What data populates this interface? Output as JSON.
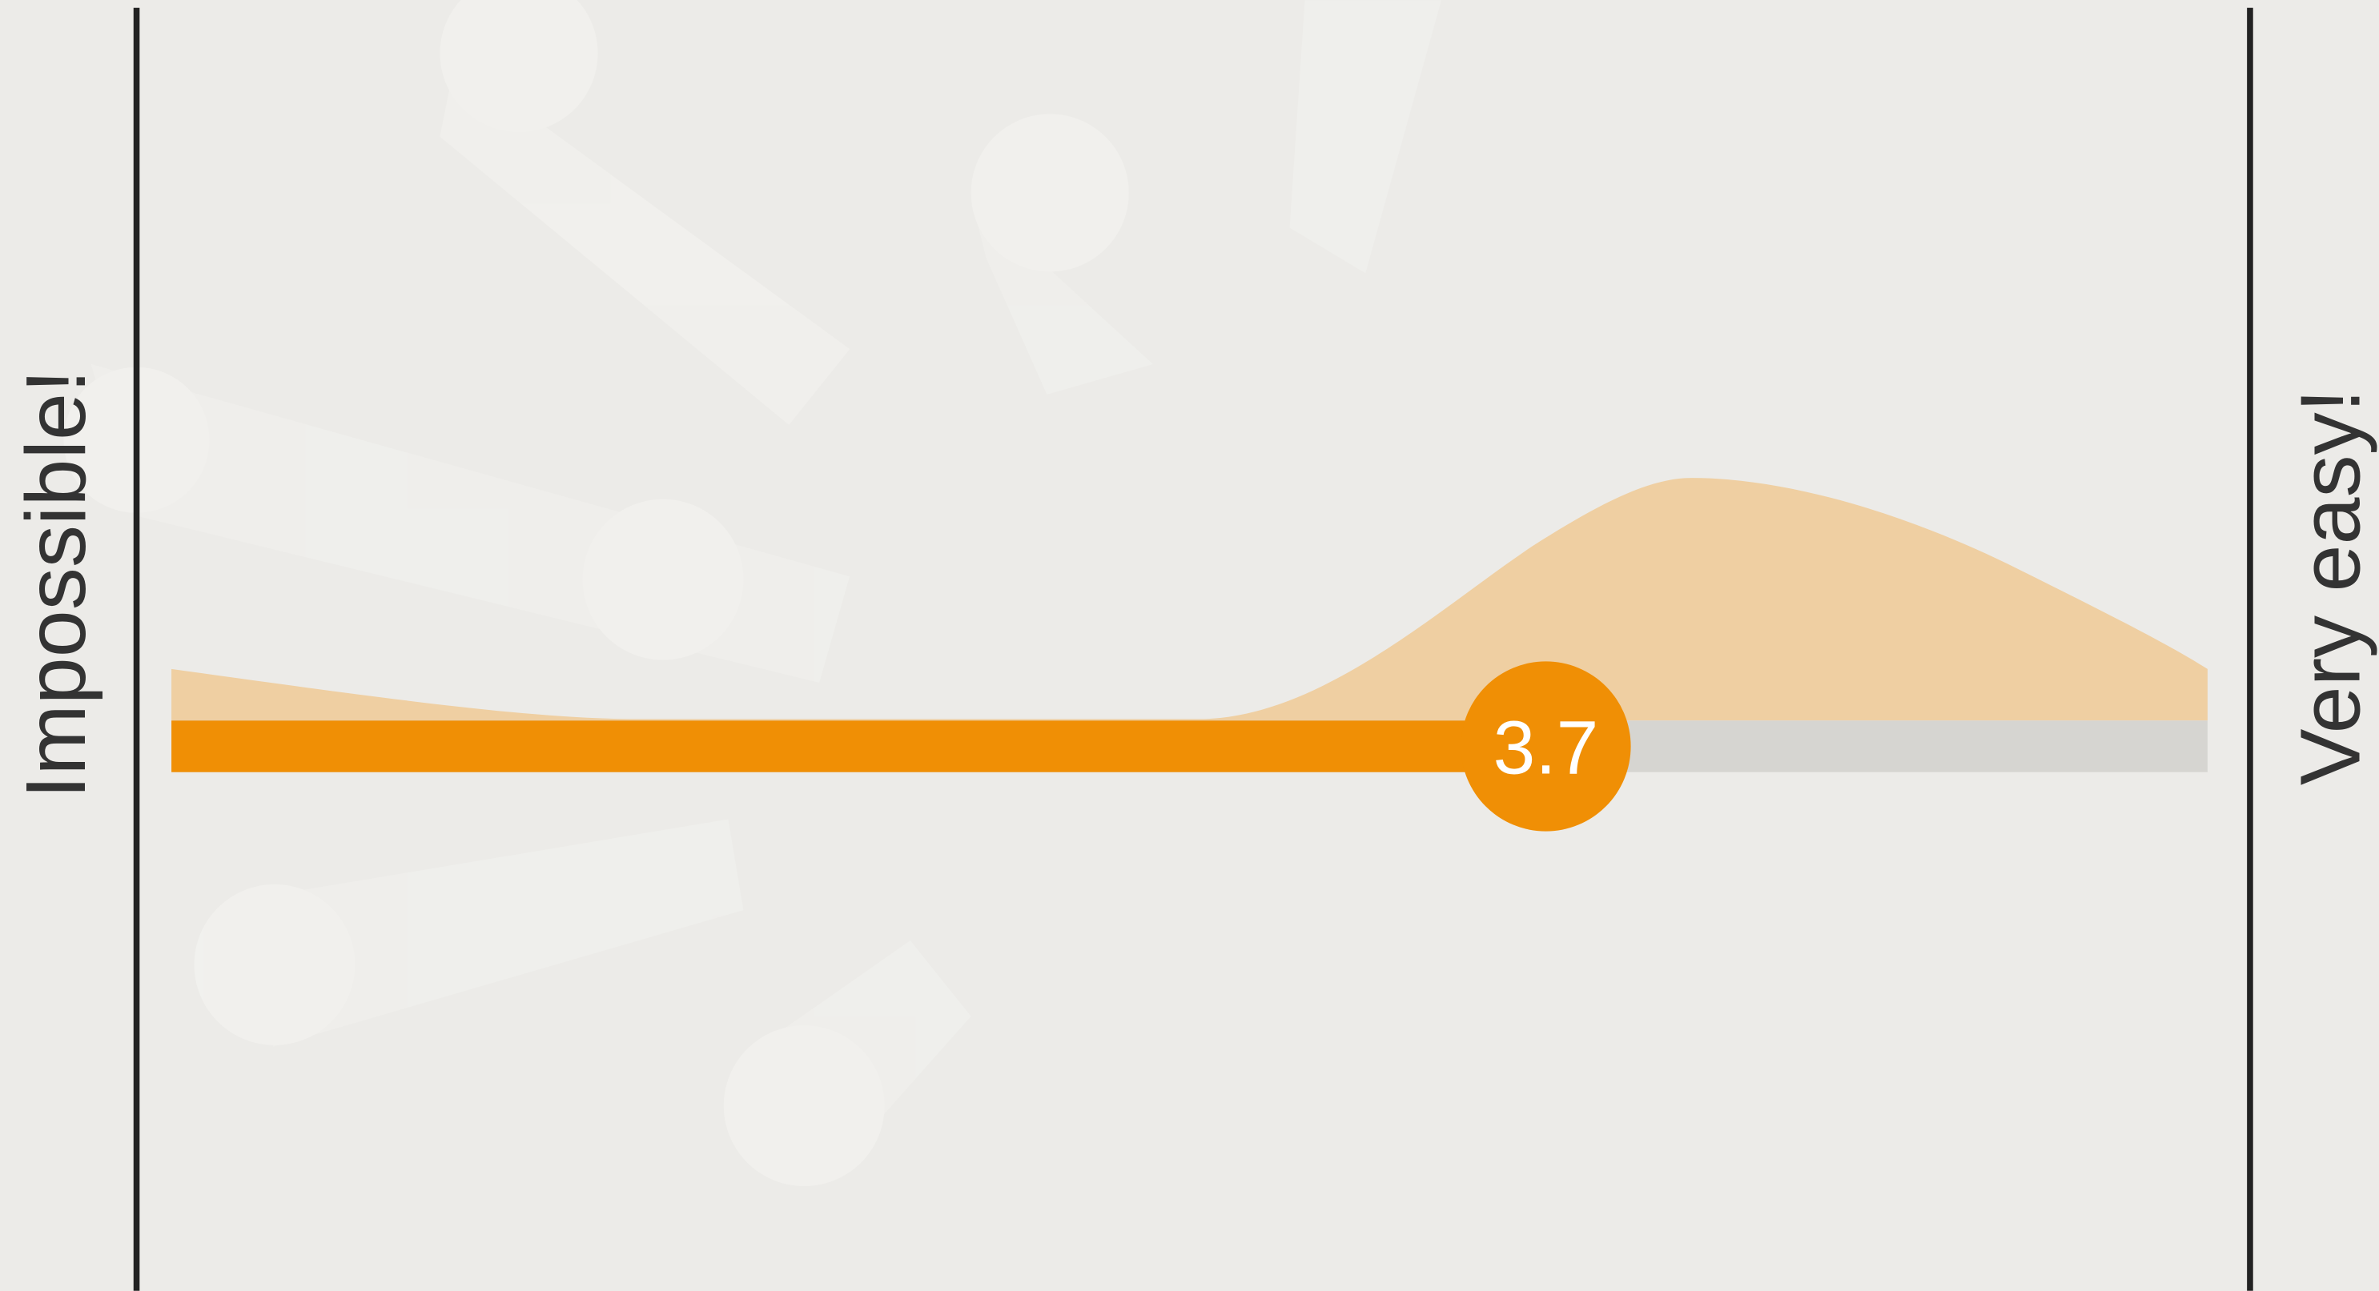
{
  "slider": {
    "value": 3.7,
    "min": 1,
    "max": 5,
    "min_label": "Impossible!",
    "max_label": "Very easy!"
  }
}
